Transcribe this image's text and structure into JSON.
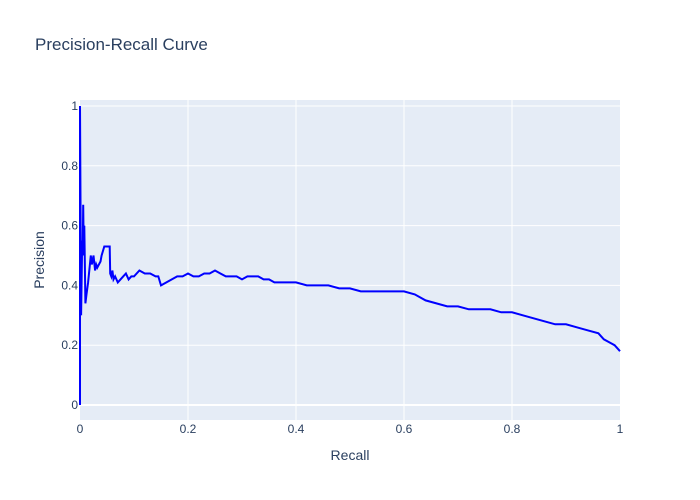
{
  "chart_data": {
    "type": "line",
    "title": "Precision-Recall Curve",
    "xlabel": "Recall",
    "ylabel": "Precision",
    "xlim": [
      0,
      1
    ],
    "ylim": [
      -0.05,
      1.02
    ],
    "xticks": [
      "0",
      "0.2",
      "0.4",
      "0.6",
      "0.8",
      "1"
    ],
    "yticks": [
      "0",
      "0.2",
      "0.4",
      "0.6",
      "0.8",
      "1"
    ],
    "grid": true,
    "legend": false,
    "colors": {
      "line": "#0000ff",
      "plot_bg": "#e5ecf6",
      "grid": "#ffffff",
      "text": "#2a3f5f"
    },
    "series": [
      {
        "x": [
          0.0,
          0.0,
          0.0,
          0.002,
          0.004,
          0.005,
          0.006,
          0.007,
          0.008,
          0.01,
          0.012,
          0.015,
          0.02,
          0.022,
          0.025,
          0.028,
          0.03,
          0.032,
          0.035,
          0.038,
          0.04,
          0.045,
          0.05,
          0.055,
          0.056,
          0.058,
          0.06,
          0.062,
          0.065,
          0.07,
          0.075,
          0.08,
          0.085,
          0.09,
          0.095,
          0.1,
          0.11,
          0.12,
          0.13,
          0.14,
          0.145,
          0.15,
          0.16,
          0.17,
          0.18,
          0.19,
          0.2,
          0.21,
          0.22,
          0.23,
          0.24,
          0.25,
          0.26,
          0.27,
          0.28,
          0.29,
          0.3,
          0.31,
          0.32,
          0.33,
          0.34,
          0.35,
          0.36,
          0.37,
          0.38,
          0.39,
          0.4,
          0.42,
          0.44,
          0.46,
          0.48,
          0.5,
          0.52,
          0.54,
          0.56,
          0.58,
          0.6,
          0.62,
          0.64,
          0.66,
          0.68,
          0.7,
          0.72,
          0.74,
          0.76,
          0.78,
          0.8,
          0.82,
          0.84,
          0.86,
          0.88,
          0.9,
          0.92,
          0.94,
          0.96,
          0.97,
          0.98,
          0.99,
          1.0
        ],
        "y": [
          0.0,
          0.5,
          1.0,
          0.3,
          0.55,
          0.5,
          0.67,
          0.5,
          0.6,
          0.34,
          0.37,
          0.41,
          0.5,
          0.47,
          0.5,
          0.45,
          0.47,
          0.46,
          0.47,
          0.48,
          0.5,
          0.53,
          0.53,
          0.53,
          0.44,
          0.43,
          0.45,
          0.42,
          0.43,
          0.41,
          0.42,
          0.43,
          0.44,
          0.42,
          0.43,
          0.43,
          0.45,
          0.44,
          0.44,
          0.43,
          0.43,
          0.4,
          0.41,
          0.42,
          0.43,
          0.43,
          0.44,
          0.43,
          0.43,
          0.44,
          0.44,
          0.45,
          0.44,
          0.43,
          0.43,
          0.43,
          0.42,
          0.43,
          0.43,
          0.43,
          0.42,
          0.42,
          0.41,
          0.41,
          0.41,
          0.41,
          0.41,
          0.4,
          0.4,
          0.4,
          0.39,
          0.39,
          0.38,
          0.38,
          0.38,
          0.38,
          0.38,
          0.37,
          0.35,
          0.34,
          0.33,
          0.33,
          0.32,
          0.32,
          0.32,
          0.31,
          0.31,
          0.3,
          0.29,
          0.28,
          0.27,
          0.27,
          0.26,
          0.25,
          0.24,
          0.22,
          0.21,
          0.2,
          0.18
        ]
      }
    ]
  }
}
